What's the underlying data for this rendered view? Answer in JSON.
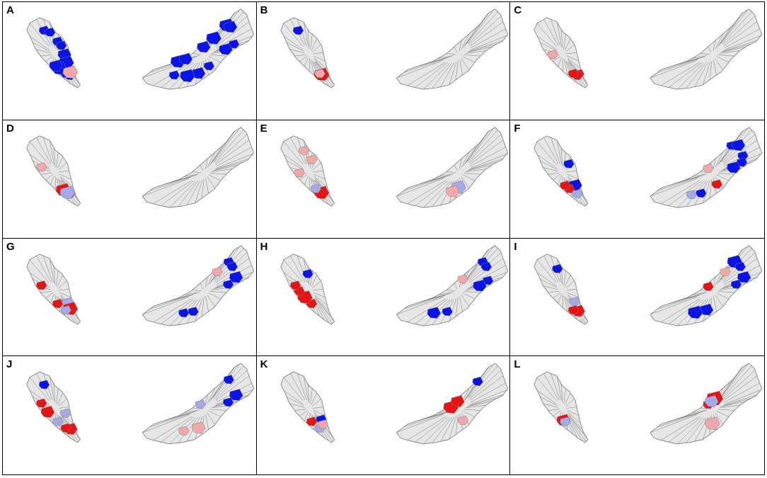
{
  "colors": {
    "land": "#e6e6e6",
    "border": "#7a7a7a",
    "strong_blue": "#0a14e6",
    "light_blue": "#a6a9e8",
    "strong_red": "#e61414",
    "light_red": "#f2a8a8"
  },
  "panels": [
    {
      "label": "A",
      "w": [
        [
          "sb",
          [
            0.05,
            0.1
          ]
        ],
        [
          "sb",
          [
            0.2,
            0.25
          ]
        ],
        [
          "sb",
          [
            0.32,
            0.38
          ]
        ],
        [
          "sb",
          [
            0.55,
            0.6
          ]
        ],
        [
          "sb",
          [
            0.68,
            0.72
          ]
        ],
        [
          "lr",
          [
            0.48
          ]
        ]
      ],
      "e": [
        [
          "sb",
          [
            0.08,
            0.12
          ]
        ],
        [
          "sb",
          [
            0.22,
            0.28
          ]
        ],
        [
          "sb",
          [
            0.38,
            0.42
          ]
        ],
        [
          "sb",
          [
            0.55,
            0.62
          ]
        ],
        [
          "sb",
          [
            0.75,
            0.82
          ]
        ],
        [
          "sb",
          [
            0.88,
            0.95
          ]
        ]
      ]
    },
    {
      "label": "B",
      "w": [
        [
          "sb",
          [
            0.05
          ]
        ],
        [
          "sr",
          [
            0.55,
            0.58
          ]
        ],
        [
          "lr",
          [
            0.6
          ]
        ]
      ],
      "e": []
    },
    {
      "label": "C",
      "w": [
        [
          "sr",
          [
            0.5,
            0.55,
            0.6
          ]
        ],
        [
          "lr",
          [
            0.85
          ]
        ]
      ],
      "e": []
    },
    {
      "label": "D",
      "w": [
        [
          "sr",
          [
            0.55,
            0.6,
            0.63
          ]
        ],
        [
          "lb",
          [
            0.58
          ]
        ],
        [
          "lr",
          [
            0.9
          ]
        ]
      ],
      "e": []
    },
    {
      "label": "E",
      "w": [
        [
          "lr",
          [
            0.1,
            0.2
          ]
        ],
        [
          "sr",
          [
            0.58
          ]
        ],
        [
          "lb",
          [
            0.65
          ]
        ],
        [
          "lr",
          [
            0.85
          ]
        ]
      ],
      "e": [
        [
          "lb",
          [
            0.78
          ]
        ],
        [
          "lr",
          [
            0.82
          ]
        ]
      ]
    },
    {
      "label": "F",
      "w": [
        [
          "sb",
          [
            0.25,
            0.42
          ]
        ],
        [
          "sr",
          [
            0.65,
            0.7
          ]
        ],
        [
          "lb",
          [
            0.55
          ]
        ]
      ],
      "e": [
        [
          "sb",
          [
            0.35,
            0.42,
            0.5,
            0.55,
            0.62,
            0.85
          ]
        ],
        [
          "sr",
          [
            0.75
          ]
        ],
        [
          "lr",
          [
            0.2
          ]
        ],
        [
          "lb",
          [
            0.9
          ]
        ]
      ]
    },
    {
      "label": "G",
      "w": [
        [
          "lb",
          [
            0.42
          ]
        ],
        [
          "sr",
          [
            0.48,
            0.7,
            0.9
          ]
        ],
        [
          "lb",
          [
            0.6
          ]
        ]
      ],
      "e": [
        [
          "sb",
          [
            0.4,
            0.45,
            0.52,
            0.6,
            0.85,
            0.9
          ]
        ],
        [
          "lr",
          [
            0.3
          ]
        ]
      ]
    },
    {
      "label": "H",
      "w": [
        [
          "sr",
          [
            0.7,
            0.78,
            0.85,
            0.9
          ]
        ],
        [
          "sb",
          [
            0.15
          ]
        ]
      ],
      "e": [
        [
          "sb",
          [
            0.4,
            0.45,
            0.55,
            0.62,
            0.85,
            0.92
          ]
        ],
        [
          "lr",
          [
            0.25
          ]
        ]
      ]
    },
    {
      "label": "I",
      "w": [
        [
          "sb",
          [
            0.1
          ]
        ],
        [
          "sr",
          [
            0.52,
            0.6
          ]
        ],
        [
          "lb",
          [
            0.4
          ]
        ]
      ],
      "e": [
        [
          "sb",
          [
            0.38,
            0.45,
            0.52,
            0.6,
            0.82,
            0.88
          ]
        ],
        [
          "sr",
          [
            0.2
          ]
        ],
        [
          "lr",
          [
            0.3
          ]
        ]
      ]
    },
    {
      "label": "J",
      "w": [
        [
          "sb",
          [
            0.05
          ]
        ],
        [
          "sr",
          [
            0.52,
            0.6,
            0.82,
            0.9
          ]
        ],
        [
          "lb",
          [
            0.35,
            0.7
          ]
        ]
      ],
      "e": [
        [
          "sb",
          [
            0.4,
            0.52,
            0.6
          ]
        ],
        [
          "lb",
          [
            0.2
          ]
        ],
        [
          "lr",
          [
            0.82,
            0.9
          ]
        ]
      ]
    },
    {
      "label": "K",
      "w": [
        [
          "sb",
          [
            0.4
          ]
        ],
        [
          "lb",
          [
            0.6
          ]
        ],
        [
          "lr",
          [
            0.45
          ]
        ],
        [
          "sr",
          [
            0.7
          ]
        ]
      ],
      "e": [
        [
          "sr",
          [
            0.18,
            0.22
          ]
        ],
        [
          "sb",
          [
            0.35
          ]
        ],
        [
          "lr",
          [
            0.75
          ]
        ]
      ]
    },
    {
      "label": "L",
      "w": [
        [
          "sr",
          [
            0.72
          ]
        ],
        [
          "lb",
          [
            0.7
          ]
        ]
      ],
      "e": [
        [
          "sr",
          [
            0.2,
            0.24
          ]
        ],
        [
          "lb",
          [
            0.22
          ]
        ],
        [
          "lr",
          [
            0.78
          ]
        ]
      ]
    }
  ]
}
